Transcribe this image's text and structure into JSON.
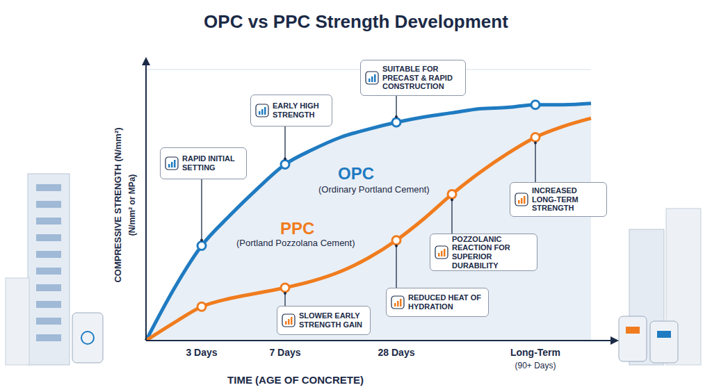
{
  "chart_data": {
    "type": "line",
    "title": "OPC vs PPC Strength Development",
    "xlabel": "TIME (AGE OF CONCRETE)",
    "ylabel": "COMPRESSIVE STRENGTH (N/mm²)\n(N/mm² or MPa)",
    "categories": [
      null,
      null,
      "3 Days",
      null,
      null,
      "7 Days",
      null,
      null,
      null,
      "28 Days",
      null,
      null,
      null,
      null,
      "Long-Term\n(90+ Days)",
      null,
      null
    ],
    "series": [
      {
        "name": "OPC",
        "description": "(Ordinary Portland Cement)",
        "color": "#1f7bc1",
        "marker": "circle",
        "values": [
          0,
          19,
          35,
          46,
          56,
          65,
          70.5,
          75,
          78,
          80.5,
          82.5,
          84,
          85.5,
          86,
          87,
          87,
          87.5
        ]
      },
      {
        "name": "PPC",
        "description": "(Portland Pozzolana Cement)",
        "color": "#f07c1e",
        "marker": "circle",
        "values": [
          0,
          6.5,
          12.5,
          15.5,
          17.5,
          19.5,
          22,
          25.5,
          30.5,
          37,
          45,
          54,
          62,
          69,
          75,
          79,
          82
        ]
      }
    ],
    "ylim": [
      0,
      100
    ],
    "yticks": [
      0,
      50,
      100
    ],
    "grid": true,
    "tick_labels": "x",
    "annotations": [
      {
        "text": "RAPID INITIAL SETTING",
        "series": "OPC",
        "at": 2
      },
      {
        "text": "EARLY HIGH STRENGTH",
        "series": "OPC",
        "at": 5
      },
      {
        "text": "SUITABLE FOR PRECAST & RAPID CONSTRUCTION",
        "series": "OPC",
        "at": 9
      },
      {
        "text": "SLOWER EARLY STRENGTH GAIN",
        "series": "PPC",
        "at": 5
      },
      {
        "text": "REDUCED HEAT OF HYDRATION",
        "series": "PPC",
        "at": 9
      },
      {
        "text": "POZZOLANIC REACTION FOR SUPERIOR DURABILITY",
        "series": "PPC",
        "at": 11
      },
      {
        "text": "INCREASED LONG-TERM STRENGTH",
        "series": "PPC",
        "at": 14
      }
    ]
  }
}
